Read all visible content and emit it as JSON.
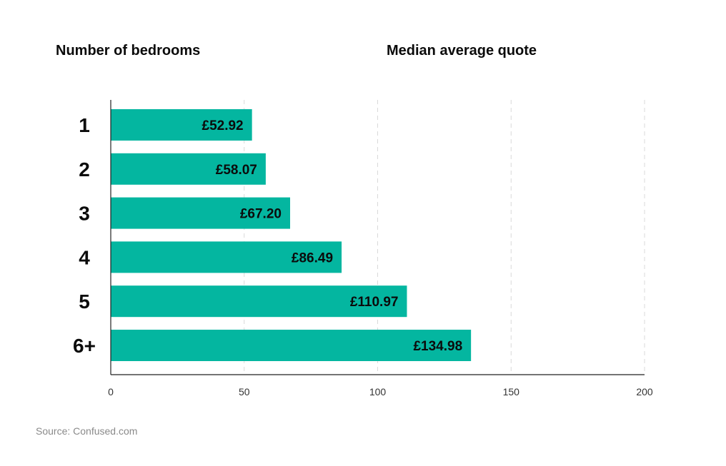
{
  "headers": {
    "left": "Number of bedrooms",
    "right": "Median average quote"
  },
  "source": "Source: Confused.com",
  "colors": {
    "bar": "#04b6a0",
    "grid": "#d9d9d9",
    "axis": "#222222",
    "text": "#0b0b0b"
  },
  "chart_data": {
    "type": "bar",
    "orientation": "horizontal",
    "categories": [
      "1",
      "2",
      "3",
      "4",
      "5",
      "6+"
    ],
    "values": [
      52.92,
      58.07,
      67.2,
      86.49,
      110.97,
      134.98
    ],
    "value_labels": [
      "£52.92",
      "£58.07",
      "£67.20",
      "£86.49",
      "£110.97",
      "£134.98"
    ],
    "xlim": [
      0,
      200
    ],
    "xticks": [
      0,
      50,
      100,
      150,
      200
    ],
    "grid": true
  }
}
